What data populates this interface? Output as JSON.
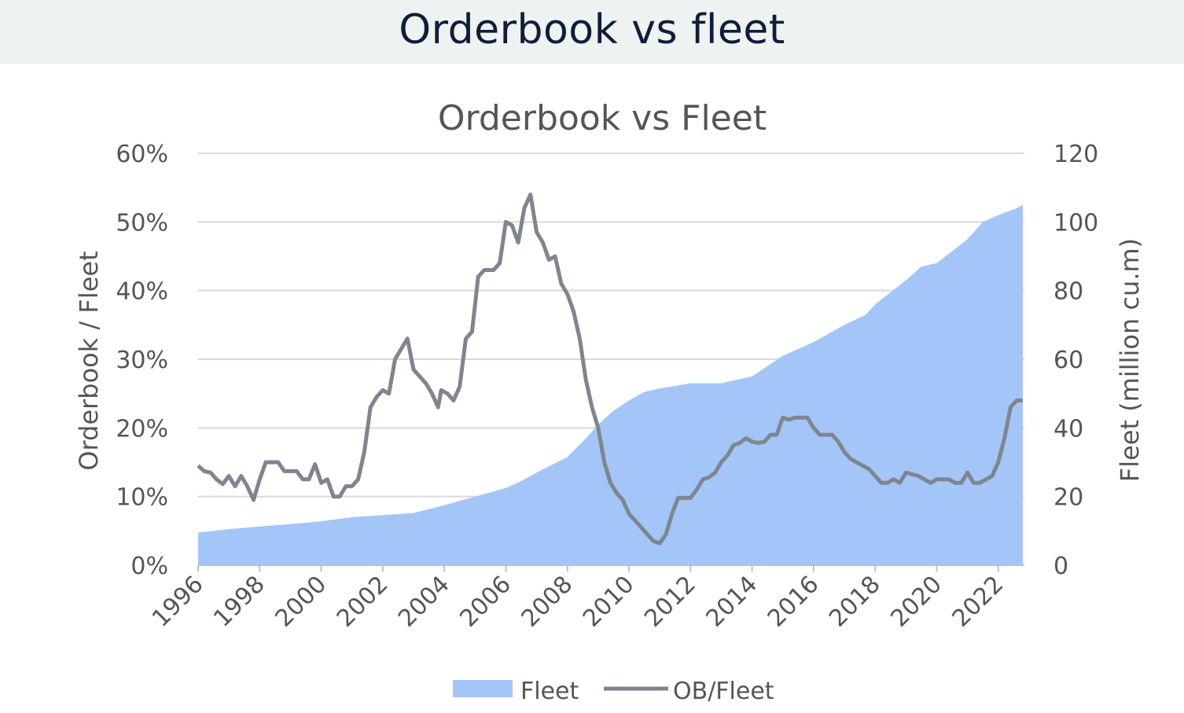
{
  "header": {
    "title": "Orderbook vs fleet"
  },
  "colors": {
    "fleet": "#a4c5f7",
    "ob_fleet": "#7f8590",
    "grid": "#d9d9d9",
    "header_bg": "#eef2f1"
  },
  "chart_data": {
    "type": "area+line",
    "title": "Orderbook vs Fleet",
    "ylabel_left": "Orderbook / Fleet",
    "ylabel_right": "Fleet (million cu.m)",
    "ylim_left": [
      0,
      0.6
    ],
    "ylim_right": [
      0,
      120
    ],
    "xlim": [
      1996,
      2022.85
    ],
    "x_ticks": [
      "1996",
      "1998",
      "2000",
      "2002",
      "2004",
      "2006",
      "2008",
      "2010",
      "2012",
      "2014",
      "2016",
      "2018",
      "2020",
      "2022"
    ],
    "y_ticks_left": [
      "0%",
      "10%",
      "20%",
      "30%",
      "40%",
      "50%",
      "60%"
    ],
    "y_ticks_right": [
      "0",
      "20",
      "40",
      "60",
      "80",
      "100",
      "120"
    ],
    "grid": true,
    "legend_position": "bottom",
    "series": [
      {
        "name": "Fleet",
        "kind": "area",
        "axis": "right",
        "points": [
          [
            1996,
            9.5
          ],
          [
            1997,
            10.5
          ],
          [
            1998,
            11.3
          ],
          [
            1999,
            12.0
          ],
          [
            2000,
            12.8
          ],
          [
            2001,
            14.0
          ],
          [
            2002,
            14.6
          ],
          [
            2003,
            15.2
          ],
          [
            2004,
            17.5
          ],
          [
            2005,
            20.0
          ],
          [
            2006,
            22.5
          ],
          [
            2006.5,
            24.5
          ],
          [
            2007,
            27.0
          ],
          [
            2008,
            31.5
          ],
          [
            2008.5,
            36.0
          ],
          [
            2009,
            41.0
          ],
          [
            2009.5,
            45.0
          ],
          [
            2010,
            48.0
          ],
          [
            2010.5,
            50.5
          ],
          [
            2011,
            51.5
          ],
          [
            2012,
            53.0
          ],
          [
            2013,
            53.0
          ],
          [
            2014,
            55.0
          ],
          [
            2015,
            61.0
          ],
          [
            2016,
            65.0
          ],
          [
            2017,
            70.0
          ],
          [
            2017.7,
            73.0
          ],
          [
            2018,
            76.0
          ],
          [
            2019,
            83.0
          ],
          [
            2019.5,
            87.0
          ],
          [
            2020,
            88.0
          ],
          [
            2021,
            95.0
          ],
          [
            2021.5,
            100.0
          ],
          [
            2022,
            102.0
          ],
          [
            2022.6,
            104.0
          ],
          [
            2022.8,
            105.0
          ]
        ]
      },
      {
        "name": "OB/Fleet",
        "kind": "line",
        "axis": "left",
        "points": [
          [
            1996,
            0.145
          ],
          [
            1996.2,
            0.137
          ],
          [
            1996.4,
            0.135
          ],
          [
            1996.6,
            0.125
          ],
          [
            1996.8,
            0.118
          ],
          [
            1997,
            0.13
          ],
          [
            1997.2,
            0.115
          ],
          [
            1997.4,
            0.13
          ],
          [
            1997.6,
            0.115
          ],
          [
            1997.8,
            0.095
          ],
          [
            1998,
            0.125
          ],
          [
            1998.2,
            0.15
          ],
          [
            1998.6,
            0.15
          ],
          [
            1998.8,
            0.137
          ],
          [
            1999.2,
            0.137
          ],
          [
            1999.4,
            0.125
          ],
          [
            1999.6,
            0.125
          ],
          [
            1999.8,
            0.147
          ],
          [
            2000,
            0.12
          ],
          [
            2000.2,
            0.125
          ],
          [
            2000.4,
            0.1
          ],
          [
            2000.6,
            0.1
          ],
          [
            2000.8,
            0.115
          ],
          [
            2001,
            0.115
          ],
          [
            2001.2,
            0.125
          ],
          [
            2001.4,
            0.165
          ],
          [
            2001.6,
            0.23
          ],
          [
            2001.8,
            0.245
          ],
          [
            2002,
            0.255
          ],
          [
            2002.2,
            0.25
          ],
          [
            2002.4,
            0.3
          ],
          [
            2002.6,
            0.315
          ],
          [
            2002.8,
            0.33
          ],
          [
            2003,
            0.285
          ],
          [
            2003.2,
            0.275
          ],
          [
            2003.4,
            0.265
          ],
          [
            2003.6,
            0.25
          ],
          [
            2003.8,
            0.23
          ],
          [
            2003.9,
            0.255
          ],
          [
            2004.1,
            0.25
          ],
          [
            2004.3,
            0.24
          ],
          [
            2004.5,
            0.26
          ],
          [
            2004.7,
            0.33
          ],
          [
            2004.9,
            0.34
          ],
          [
            2005.1,
            0.42
          ],
          [
            2005.3,
            0.43
          ],
          [
            2005.6,
            0.43
          ],
          [
            2005.8,
            0.44
          ],
          [
            2006,
            0.5
          ],
          [
            2006.2,
            0.495
          ],
          [
            2006.4,
            0.47
          ],
          [
            2006.6,
            0.52
          ],
          [
            2006.8,
            0.54
          ],
          [
            2007,
            0.485
          ],
          [
            2007.2,
            0.47
          ],
          [
            2007.4,
            0.445
          ],
          [
            2007.6,
            0.45
          ],
          [
            2007.8,
            0.41
          ],
          [
            2008,
            0.395
          ],
          [
            2008.2,
            0.37
          ],
          [
            2008.4,
            0.33
          ],
          [
            2008.6,
            0.27
          ],
          [
            2008.8,
            0.23
          ],
          [
            2009,
            0.2
          ],
          [
            2009.2,
            0.15
          ],
          [
            2009.4,
            0.12
          ],
          [
            2009.6,
            0.105
          ],
          [
            2009.8,
            0.095
          ],
          [
            2010,
            0.075
          ],
          [
            2010.2,
            0.065
          ],
          [
            2010.4,
            0.055
          ],
          [
            2010.6,
            0.045
          ],
          [
            2010.8,
            0.035
          ],
          [
            2011,
            0.032
          ],
          [
            2011.2,
            0.045
          ],
          [
            2011.4,
            0.075
          ],
          [
            2011.6,
            0.098
          ],
          [
            2012,
            0.098
          ],
          [
            2012.2,
            0.11
          ],
          [
            2012.4,
            0.125
          ],
          [
            2012.6,
            0.128
          ],
          [
            2012.8,
            0.135
          ],
          [
            2013,
            0.15
          ],
          [
            2013.2,
            0.16
          ],
          [
            2013.4,
            0.175
          ],
          [
            2013.6,
            0.178
          ],
          [
            2013.8,
            0.185
          ],
          [
            2014,
            0.18
          ],
          [
            2014.2,
            0.178
          ],
          [
            2014.4,
            0.18
          ],
          [
            2014.6,
            0.19
          ],
          [
            2014.8,
            0.19
          ],
          [
            2015,
            0.215
          ],
          [
            2015.2,
            0.212
          ],
          [
            2015.4,
            0.215
          ],
          [
            2015.8,
            0.215
          ],
          [
            2016,
            0.2
          ],
          [
            2016.2,
            0.19
          ],
          [
            2016.6,
            0.19
          ],
          [
            2016.8,
            0.18
          ],
          [
            2017,
            0.165
          ],
          [
            2017.2,
            0.155
          ],
          [
            2017.6,
            0.145
          ],
          [
            2017.8,
            0.14
          ],
          [
            2018,
            0.13
          ],
          [
            2018.2,
            0.12
          ],
          [
            2018.4,
            0.12
          ],
          [
            2018.6,
            0.125
          ],
          [
            2018.8,
            0.12
          ],
          [
            2019,
            0.135
          ],
          [
            2019.4,
            0.13
          ],
          [
            2019.6,
            0.125
          ],
          [
            2019.8,
            0.12
          ],
          [
            2020,
            0.125
          ],
          [
            2020.4,
            0.125
          ],
          [
            2020.6,
            0.12
          ],
          [
            2020.8,
            0.12
          ],
          [
            2021,
            0.135
          ],
          [
            2021.2,
            0.12
          ],
          [
            2021.4,
            0.12
          ],
          [
            2021.6,
            0.125
          ],
          [
            2021.8,
            0.13
          ],
          [
            2022,
            0.15
          ],
          [
            2022.2,
            0.185
          ],
          [
            2022.4,
            0.23
          ],
          [
            2022.6,
            0.24
          ],
          [
            2022.8,
            0.24
          ]
        ]
      }
    ]
  }
}
